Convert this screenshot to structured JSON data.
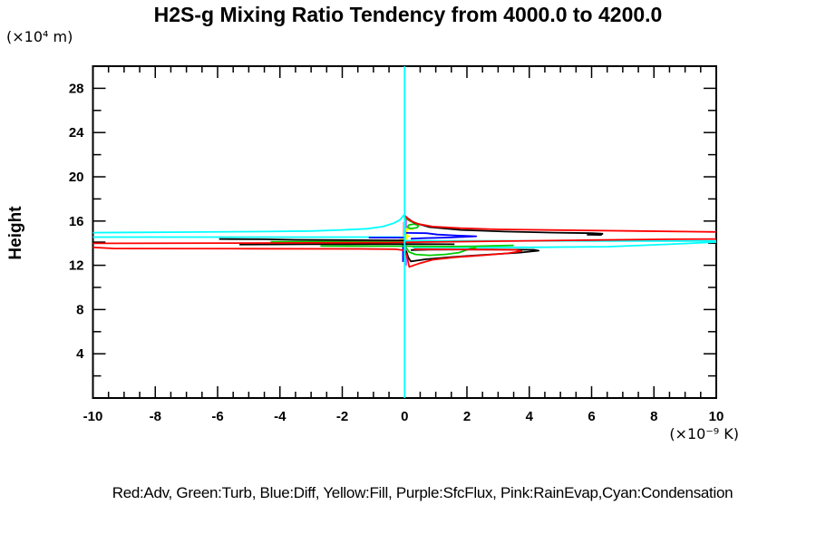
{
  "chart_data": {
    "type": "line",
    "title": "H2S-g Mixing Ratio Tendency from 4000.0 to 4200.0",
    "ylabel": "Height",
    "y_unit": "(×10⁴ m)",
    "x_unit": "(×10⁻⁹ K)",
    "xlabel": "",
    "xlim": [
      -10,
      10
    ],
    "ylim": [
      0,
      30
    ],
    "x_major_ticks": [
      -10,
      -8,
      -6,
      -4,
      -2,
      0,
      2,
      4,
      6,
      8,
      10
    ],
    "x_minor_step": 0.5,
    "y_major_ticks": [
      4,
      8,
      12,
      16,
      20,
      24,
      28
    ],
    "y_minor_step": 2,
    "grid": false,
    "legend_position": "bottom",
    "legend_text": "Red:Adv, Green:Turb, Blue:Diff, Yellow:Fill, Purple:SfcFlux, Pink:RainEvap,Cyan:Condensation",
    "colors": {
      "adv": "#ff0000",
      "turb": "#00cc00",
      "diff": "#0000ff",
      "fill": "#ffff00",
      "sfcflux": "#bb66ff",
      "rainevap": "#ffaacc",
      "condensation": "#00ffff",
      "net": "#000000"
    },
    "series": [
      {
        "name": "rainevap-vertical",
        "color_key": "rainevap",
        "points": [
          [
            -0.04,
            15.9
          ],
          [
            -0.04,
            12.5
          ]
        ]
      },
      {
        "name": "sfcflux-vertical",
        "color_key": "sfcflux",
        "points": [
          [
            0.05,
            16.4
          ],
          [
            0.05,
            11.95
          ]
        ]
      },
      {
        "name": "condensation-left-curve",
        "color_key": "condensation",
        "points": [
          [
            -10,
            14.95
          ],
          [
            -7,
            15.0
          ],
          [
            -4.5,
            15.05
          ],
          [
            -3,
            15.1
          ],
          [
            -2,
            15.2
          ],
          [
            -1.2,
            15.3
          ],
          [
            -0.7,
            15.5
          ],
          [
            -0.35,
            15.8
          ],
          [
            -0.15,
            16.1
          ],
          [
            -0.05,
            16.45
          ],
          [
            0,
            16.6
          ]
        ]
      },
      {
        "name": "condensation-left-flat",
        "color_key": "condensation",
        "points": [
          [
            -10,
            14.55
          ],
          [
            0.05,
            14.55
          ]
        ]
      },
      {
        "name": "condensation-right-flat",
        "color_key": "condensation",
        "points": [
          [
            0,
            14.22
          ],
          [
            6,
            14.2
          ],
          [
            10,
            14.2
          ]
        ]
      },
      {
        "name": "condensation-right-rise",
        "color_key": "condensation",
        "points": [
          [
            0.25,
            13.62
          ],
          [
            4,
            13.62
          ],
          [
            6.5,
            13.68
          ],
          [
            8.5,
            13.9
          ],
          [
            9.6,
            14.05
          ],
          [
            10,
            14.1
          ]
        ]
      },
      {
        "name": "fill-bar-upper",
        "color_key": "fill",
        "points": [
          [
            0,
            15.27
          ],
          [
            0.28,
            15.27
          ]
        ]
      },
      {
        "name": "fill-vertical",
        "color_key": "fill",
        "points": [
          [
            0.07,
            15.25
          ],
          [
            0.07,
            14.3
          ]
        ]
      },
      {
        "name": "fill-bar-mid",
        "color_key": "fill",
        "points": [
          [
            -0.05,
            14.63
          ],
          [
            0.18,
            14.63
          ]
        ]
      },
      {
        "name": "fill-bar-lower",
        "color_key": "fill",
        "points": [
          [
            -0.18,
            14.33
          ],
          [
            0.05,
            14.33
          ]
        ]
      },
      {
        "name": "diff-left",
        "color_key": "diff",
        "points": [
          [
            -1.15,
            14.5
          ],
          [
            0,
            14.5
          ]
        ]
      },
      {
        "name": "diff-right-zigzag",
        "color_key": "diff",
        "points": [
          [
            0.05,
            14.93
          ],
          [
            0.7,
            14.9
          ],
          [
            1.05,
            14.78
          ],
          [
            1.6,
            14.7
          ],
          [
            2.3,
            14.62
          ],
          [
            1.5,
            14.52
          ],
          [
            0.6,
            14.45
          ],
          [
            0.2,
            14.4
          ]
        ]
      },
      {
        "name": "diff-vertical",
        "color_key": "diff",
        "points": [
          [
            -0.05,
            13.95
          ],
          [
            -0.05,
            12.3
          ]
        ]
      },
      {
        "name": "turb-upper",
        "color_key": "turb",
        "points": [
          [
            0.05,
            16.2
          ],
          [
            0.2,
            15.95
          ],
          [
            0.4,
            15.8
          ]
        ]
      },
      {
        "name": "turb-loop",
        "color_key": "turb",
        "points": [
          [
            0.08,
            15.45
          ],
          [
            0.14,
            15.65
          ],
          [
            0.3,
            15.73
          ],
          [
            0.45,
            15.6
          ],
          [
            0.4,
            15.4
          ],
          [
            0.2,
            15.32
          ],
          [
            0.08,
            15.45
          ]
        ]
      },
      {
        "name": "turb-left-upper",
        "color_key": "turb",
        "points": [
          [
            -4.3,
            14.12
          ],
          [
            -2.5,
            14.14
          ],
          [
            -1,
            14.12
          ],
          [
            0,
            14.1
          ]
        ]
      },
      {
        "name": "turb-left-lower",
        "color_key": "turb",
        "points": [
          [
            -2.7,
            13.74
          ],
          [
            -1,
            13.73
          ],
          [
            0,
            13.73
          ],
          [
            1.3,
            13.7
          ],
          [
            2.2,
            13.72
          ],
          [
            3.5,
            13.8
          ]
        ]
      },
      {
        "name": "turb-dip",
        "color_key": "turb",
        "points": [
          [
            0.05,
            13.58
          ],
          [
            0.15,
            13.2
          ],
          [
            0.35,
            12.98
          ],
          [
            0.8,
            12.9
          ],
          [
            1.3,
            12.98
          ],
          [
            1.75,
            13.15
          ],
          [
            2.1,
            13.5
          ],
          [
            2.3,
            13.58
          ]
        ]
      },
      {
        "name": "net-top-hook",
        "color_key": "net",
        "points": [
          [
            0.05,
            16.35
          ],
          [
            0.3,
            15.85
          ],
          [
            0.8,
            15.45
          ],
          [
            1.8,
            15.2
          ],
          [
            3.2,
            15.05
          ],
          [
            4.8,
            14.95
          ],
          [
            6,
            14.9
          ],
          [
            6.35,
            14.85
          ],
          [
            6.3,
            14.75
          ],
          [
            5.85,
            14.76
          ]
        ]
      },
      {
        "name": "net-left-stepped",
        "color_key": "net",
        "points": [
          [
            -5.95,
            14.38
          ],
          [
            -4.5,
            14.35
          ],
          [
            -3.5,
            14.3
          ],
          [
            -1.5,
            14.27
          ],
          [
            0,
            14.25
          ]
        ]
      },
      {
        "name": "net-left-stub",
        "color_key": "net",
        "points": [
          [
            -10,
            14.08
          ],
          [
            -9.6,
            14.08
          ]
        ]
      },
      {
        "name": "net-mid",
        "color_key": "net",
        "points": [
          [
            -5.3,
            13.88
          ],
          [
            -3,
            13.9
          ],
          [
            0,
            13.92
          ],
          [
            1.6,
            13.9
          ]
        ]
      },
      {
        "name": "net-lower-hook",
        "color_key": "net",
        "points": [
          [
            0.05,
            13.3
          ],
          [
            0.12,
            12.7
          ],
          [
            0.2,
            12.35
          ],
          [
            0.7,
            12.55
          ],
          [
            1.5,
            12.75
          ],
          [
            2.6,
            12.95
          ],
          [
            3.7,
            13.15
          ],
          [
            4.3,
            13.32
          ],
          [
            4.15,
            13.4
          ],
          [
            2.8,
            13.43
          ],
          [
            0.8,
            13.42
          ],
          [
            0.2,
            13.38
          ]
        ]
      },
      {
        "name": "adv-top-right",
        "color_key": "adv",
        "points": [
          [
            0,
            16.52
          ],
          [
            0.15,
            16.1
          ],
          [
            0.4,
            15.75
          ],
          [
            0.9,
            15.5
          ],
          [
            1.8,
            15.35
          ],
          [
            3,
            15.25
          ],
          [
            5,
            15.18
          ],
          [
            7.5,
            15.1
          ],
          [
            10,
            15.02
          ]
        ]
      },
      {
        "name": "adv-long",
        "color_key": "adv",
        "points": [
          [
            -10,
            13.98
          ],
          [
            -4,
            14.02
          ],
          [
            -0.5,
            14.06
          ],
          [
            0.5,
            14.1
          ],
          [
            3,
            14.18
          ],
          [
            6,
            14.28
          ],
          [
            8.5,
            14.35
          ],
          [
            10,
            14.38
          ]
        ]
      },
      {
        "name": "adv-lower",
        "color_key": "adv",
        "points": [
          [
            -10,
            13.62
          ],
          [
            -9.3,
            13.52
          ],
          [
            -5,
            13.5
          ],
          [
            -1.5,
            13.48
          ],
          [
            -0.3,
            13.45
          ],
          [
            0,
            13.35
          ],
          [
            0.08,
            12.8
          ],
          [
            0.12,
            12.2
          ],
          [
            0.15,
            11.85
          ],
          [
            0.45,
            12.15
          ],
          [
            0.9,
            12.5
          ],
          [
            1.6,
            12.72
          ],
          [
            2.5,
            12.9
          ],
          [
            3.3,
            13.08
          ],
          [
            3.75,
            13.28
          ],
          [
            3.55,
            13.4
          ],
          [
            2,
            13.43
          ],
          [
            0.3,
            13.46
          ]
        ]
      },
      {
        "name": "condensation-zero-vertical",
        "color_key": "condensation",
        "points": [
          [
            0,
            30
          ],
          [
            0,
            0
          ]
        ]
      }
    ]
  }
}
